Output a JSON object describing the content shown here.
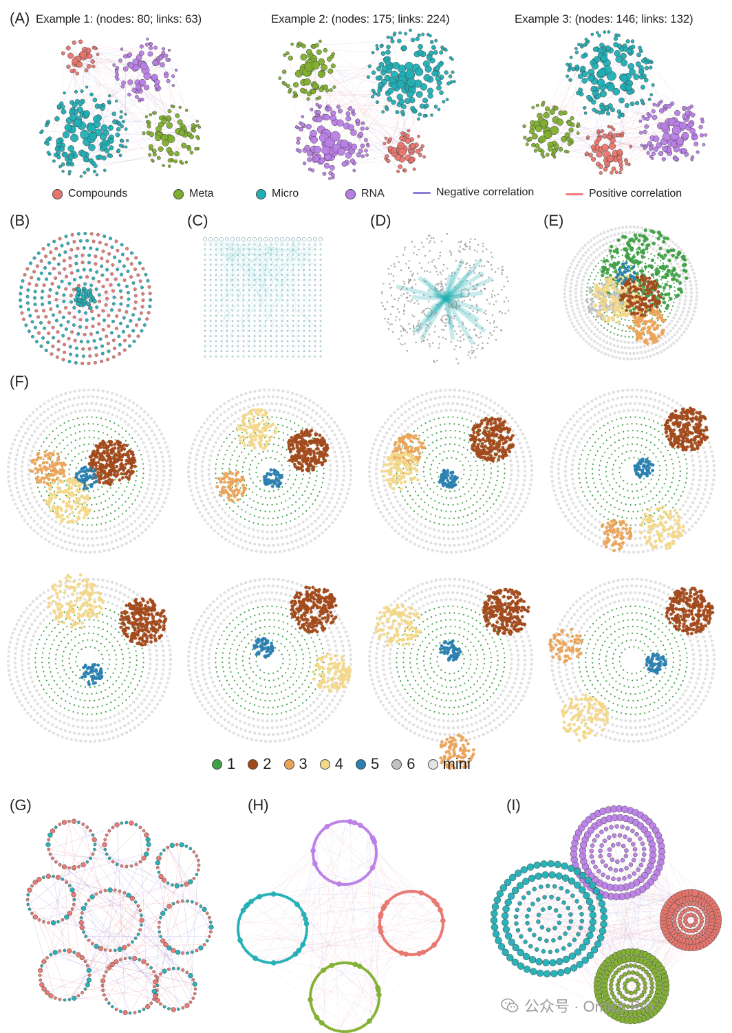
{
  "panels": {
    "A": "(A)",
    "B": "(B)",
    "C": "(C)",
    "D": "(D)",
    "E": "(E)",
    "F": "(F)",
    "G": "(G)",
    "H": "(H)",
    "I": "(I)"
  },
  "examples": [
    {
      "title": "Example 1: (nodes: 80; links: 63)"
    },
    {
      "title": "Example 2: (nodes: 175; links: 224)"
    },
    {
      "title": "Example 3: (nodes: 146; links: 132)"
    }
  ],
  "legend_a": {
    "compounds": "Compounds",
    "meta": "Meta",
    "micro": "Micro",
    "rna": "RNA",
    "negative": "Negative correlation",
    "positive": "Positive correlation"
  },
  "legend_f": [
    "1",
    "2",
    "3",
    "4",
    "5",
    "6",
    "mini"
  ],
  "colors": {
    "compounds": "#e8756d",
    "meta": "#7fae2e",
    "micro": "#20aeb4",
    "rna": "#b97ee6",
    "negative": "#8a7fd8",
    "positive": "#f07a7a",
    "m1": "#3fa046",
    "m2": "#a24a1c",
    "m3": "#eaa45a",
    "m4": "#f3d88a",
    "m5": "#2a7fb0",
    "m6": "#c2c2c2",
    "mini": "#e4e4e4"
  },
  "watermark": {
    "icon": "wechat-icon",
    "text": "公众号 · Omics Pro"
  }
}
